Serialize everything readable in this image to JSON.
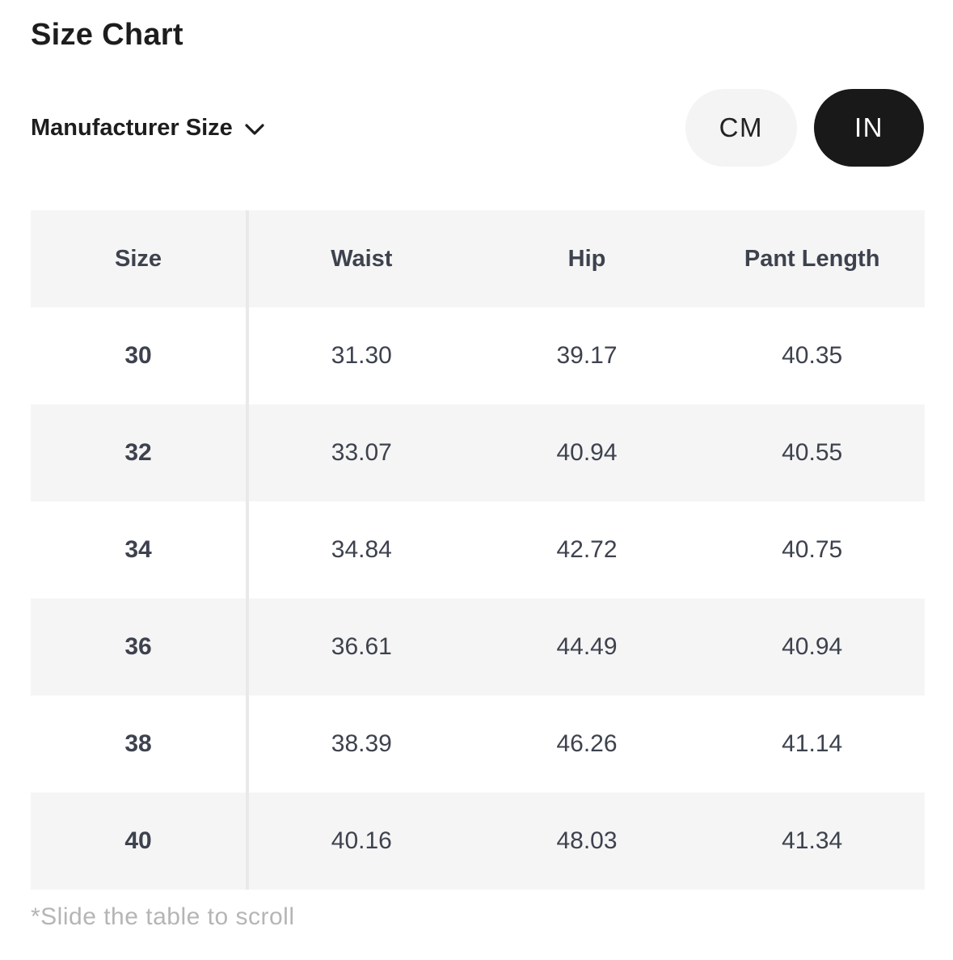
{
  "header": {
    "title": "Size Chart",
    "size_selector": {
      "label": "Manufacturer Size",
      "icon": "chevron-down-icon"
    },
    "unit_toggle": {
      "cm_label": "CM",
      "in_label": "IN",
      "selected": "IN"
    }
  },
  "table": {
    "columns": [
      "Size",
      "Waist",
      "Hip",
      "Pant Length"
    ],
    "rows": [
      [
        "30",
        "31.30",
        "39.17",
        "40.35"
      ],
      [
        "32",
        "33.07",
        "40.94",
        "40.55"
      ],
      [
        "34",
        "34.84",
        "42.72",
        "40.75"
      ],
      [
        "36",
        "36.61",
        "44.49",
        "40.94"
      ],
      [
        "38",
        "38.39",
        "46.26",
        "41.14"
      ],
      [
        "40",
        "40.16",
        "48.03",
        "41.34"
      ]
    ],
    "unit": "IN"
  },
  "footnote": "*Slide the table to scroll",
  "colors": {
    "active_pill_bg": "#191919",
    "active_pill_text": "#ffffff",
    "inactive_pill_bg": "#f4f4f4",
    "stripe_bg": "#f5f5f5",
    "table_text": "#3d424e",
    "divider": "#e9e9e9",
    "footnote_text": "#b5b5b5",
    "title_text": "#1d1d1d"
  }
}
